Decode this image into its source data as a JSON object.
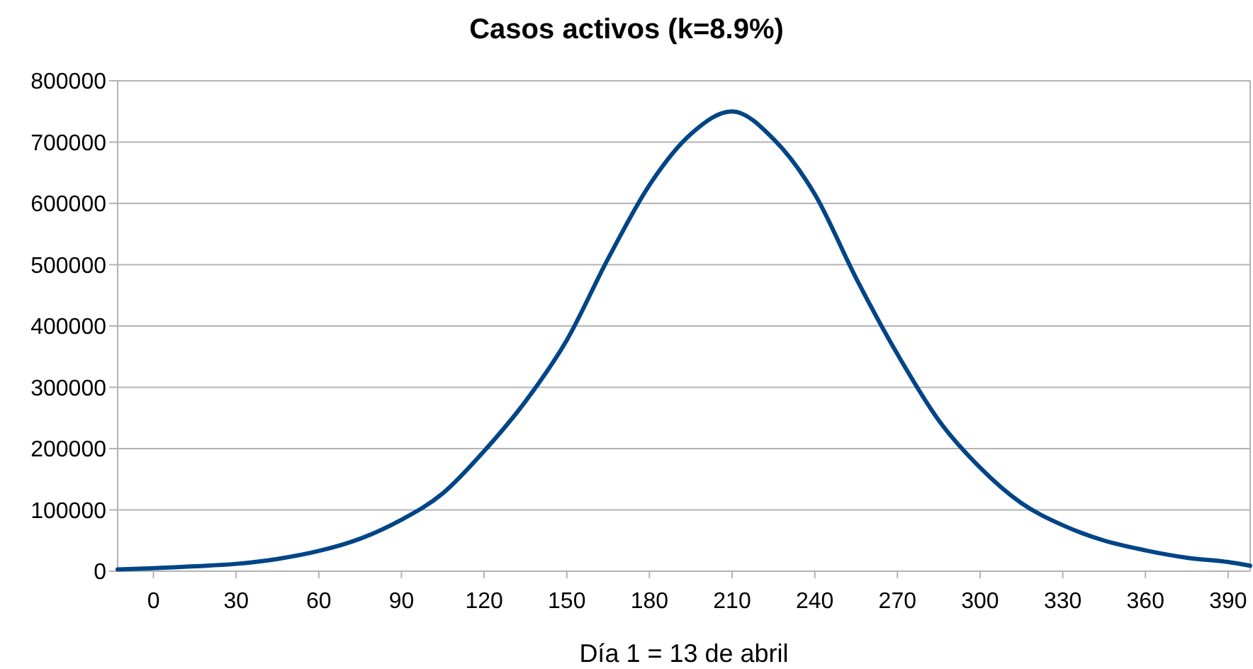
{
  "chart_data": {
    "type": "line",
    "title": "Casos activos (k=8.9%)",
    "xlabel": "Día 1 = 13 de abril",
    "x": [
      -13,
      0,
      15,
      30,
      45,
      60,
      75,
      90,
      105,
      120,
      135,
      150,
      165,
      180,
      195,
      210,
      225,
      240,
      255,
      270,
      285,
      300,
      315,
      330,
      345,
      360,
      375,
      390,
      398
    ],
    "series": [
      {
        "color": "#004586",
        "values": [
          3000,
          5000,
          8000,
          12000,
          20000,
          33000,
          53000,
          84000,
          127000,
          196000,
          277000,
          377000,
          510000,
          630000,
          713000,
          750000,
          705000,
          615000,
          478000,
          354000,
          246000,
          169000,
          111000,
          75000,
          50000,
          34000,
          22000,
          15000,
          9000
        ]
      }
    ],
    "xlim": [
      -13,
      398
    ],
    "xticks": [
      0,
      30,
      60,
      90,
      120,
      150,
      180,
      210,
      240,
      270,
      300,
      330,
      360,
      390
    ],
    "ylim": [
      0,
      800000
    ],
    "yticks": [
      0,
      100000,
      200000,
      300000,
      400000,
      500000,
      600000,
      700000,
      800000
    ],
    "grid": "y",
    "marker": "none",
    "line_style": "solid"
  }
}
